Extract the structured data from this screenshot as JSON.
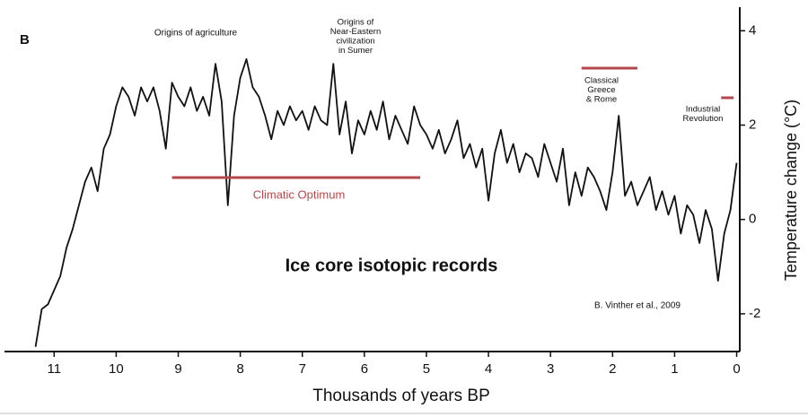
{
  "chart_data": {
    "type": "line",
    "panel_label": "B",
    "title": "Ice core isotopic records",
    "source": "B. Vinther et al., 2009",
    "x_label": "Thousands of years BP",
    "y_label": "Temperature change (°C)",
    "xlim": [
      11.8,
      -0.05
    ],
    "xticks": [
      11,
      10,
      9,
      8,
      7,
      6,
      5,
      4,
      3,
      2,
      1,
      0
    ],
    "ylim": [
      -2.8,
      4.5
    ],
    "yticks": [
      -2,
      0,
      2,
      4
    ],
    "color": "#111111",
    "span_color": "#b5474b",
    "x": [
      11.3,
      11.2,
      11.1,
      11.0,
      10.9,
      10.8,
      10.7,
      10.6,
      10.5,
      10.4,
      10.3,
      10.2,
      10.1,
      10.0,
      9.9,
      9.8,
      9.7,
      9.6,
      9.5,
      9.4,
      9.3,
      9.2,
      9.1,
      9.0,
      8.9,
      8.8,
      8.7,
      8.6,
      8.5,
      8.4,
      8.3,
      8.2,
      8.1,
      8.0,
      7.9,
      7.8,
      7.7,
      7.6,
      7.5,
      7.4,
      7.3,
      7.2,
      7.1,
      7.0,
      6.9,
      6.8,
      6.7,
      6.6,
      6.5,
      6.4,
      6.3,
      6.2,
      6.1,
      6.0,
      5.9,
      5.8,
      5.7,
      5.6,
      5.5,
      5.4,
      5.3,
      5.2,
      5.1,
      5.0,
      4.9,
      4.8,
      4.7,
      4.6,
      4.5,
      4.4,
      4.3,
      4.2,
      4.1,
      4.0,
      3.9,
      3.8,
      3.7,
      3.6,
      3.5,
      3.4,
      3.3,
      3.2,
      3.1,
      3.0,
      2.9,
      2.8,
      2.7,
      2.6,
      2.5,
      2.4,
      2.3,
      2.2,
      2.1,
      2.0,
      1.9,
      1.8,
      1.7,
      1.6,
      1.5,
      1.4,
      1.3,
      1.2,
      1.1,
      1.0,
      0.9,
      0.8,
      0.7,
      0.6,
      0.5,
      0.4,
      0.3,
      0.2,
      0.1,
      0.0
    ],
    "values": [
      -2.7,
      -1.9,
      -1.8,
      -1.5,
      -1.2,
      -0.6,
      -0.2,
      0.3,
      0.8,
      1.1,
      0.6,
      1.5,
      1.8,
      2.4,
      2.8,
      2.6,
      2.2,
      2.8,
      2.5,
      2.8,
      2.3,
      1.5,
      2.9,
      2.6,
      2.4,
      2.8,
      2.3,
      2.6,
      2.2,
      3.3,
      2.5,
      0.3,
      2.2,
      3.0,
      3.4,
      2.8,
      2.6,
      2.2,
      1.7,
      2.3,
      2.0,
      2.4,
      2.1,
      2.3,
      1.9,
      2.4,
      2.1,
      2.0,
      3.3,
      1.8,
      2.5,
      1.4,
      2.1,
      1.8,
      2.3,
      1.9,
      2.5,
      1.7,
      2.2,
      1.9,
      1.6,
      2.4,
      2.0,
      1.8,
      1.5,
      1.9,
      1.4,
      1.7,
      2.1,
      1.3,
      1.6,
      1.1,
      1.5,
      0.4,
      1.4,
      1.9,
      1.2,
      1.6,
      1.0,
      1.4,
      1.3,
      0.9,
      1.6,
      1.2,
      0.8,
      1.5,
      0.3,
      1.0,
      0.5,
      1.1,
      0.9,
      0.6,
      0.2,
      1.0,
      2.2,
      0.5,
      0.8,
      0.3,
      0.6,
      0.9,
      0.2,
      0.6,
      0.1,
      0.5,
      -0.3,
      0.3,
      0.1,
      -0.5,
      0.2,
      -0.2,
      -1.3,
      -0.3,
      0.2,
      1.2
    ],
    "annotations": [
      {
        "text": [
          "Origins of agriculture"
        ]
      },
      {
        "text": [
          "Origins of",
          "Near-Eastern",
          "civilization",
          "in Sumer"
        ]
      },
      {
        "text": [
          "Classical",
          "Greece",
          "& Rome"
        ],
        "span": [
          2.5,
          1.6
        ]
      },
      {
        "text": [
          "Industrial",
          "Revolution"
        ],
        "span": [
          0.25,
          0.05
        ]
      },
      {
        "text": [
          "Climatic Optimum"
        ],
        "span": [
          9.1,
          5.1
        ]
      }
    ]
  }
}
